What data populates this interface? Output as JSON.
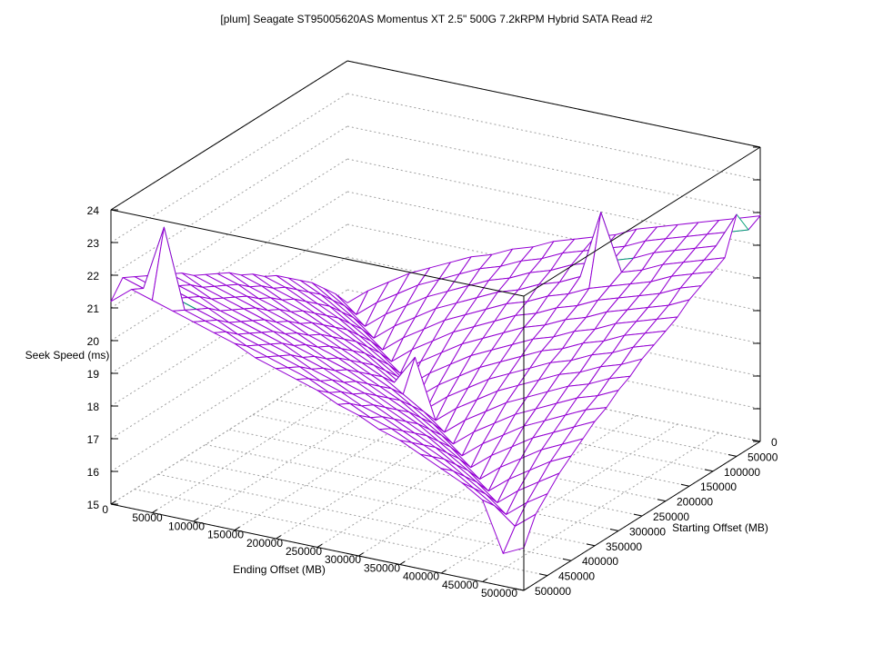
{
  "chart_data": {
    "type": "heatmap",
    "render_style": "3d wireframe surface",
    "title": "[plum] Seagate ST95005620AS Momentus XT 2.5\" 500G 7.2kRPM Hybrid SATA Read #2",
    "xlabel": "Ending Offset (MB)",
    "ylabel": "Starting Offset (MB)",
    "zlabel": "Seek Speed (ms)",
    "xlim": [
      0,
      500000
    ],
    "ylim": [
      0,
      500000
    ],
    "zlim": [
      15,
      24
    ],
    "xticks": [
      "0",
      "50000",
      "100000",
      "150000",
      "200000",
      "250000",
      "300000",
      "350000",
      "400000",
      "450000",
      "500000"
    ],
    "yticks": [
      "0",
      "50000",
      "100000",
      "150000",
      "200000",
      "250000",
      "300000",
      "350000",
      "400000",
      "450000",
      "500000"
    ],
    "zticks": [
      "15",
      "16",
      "17",
      "18",
      "19",
      "20",
      "21",
      "22",
      "23",
      "24"
    ],
    "grid": true,
    "colors": {
      "surface_top": "#9400d3",
      "surface_bottom": "#009e73",
      "grid": "#a0a0a0",
      "axis": "#000000"
    },
    "x_step": 25000,
    "y_step": 25000,
    "z_rows_by_starting_offset": [
      [
        16.6,
        17.1,
        17.5,
        17.9,
        18.2,
        18.5,
        18.8,
        19.0,
        19.3,
        19.5,
        19.8,
        20.0,
        20.2,
        20.4,
        20.7,
        20.9,
        21.1,
        21.3,
        21.5,
        21.7,
        21.9
      ],
      [
        17.1,
        16.6,
        17.1,
        17.5,
        17.9,
        18.2,
        18.5,
        18.8,
        19.0,
        19.3,
        19.5,
        19.8,
        20.0,
        20.2,
        20.4,
        20.7,
        20.9,
        21.1,
        21.3,
        21.5,
        21.7
      ],
      [
        17.5,
        17.1,
        16.6,
        17.1,
        17.5,
        17.9,
        18.2,
        18.5,
        18.8,
        19.0,
        19.3,
        19.5,
        19.8,
        20.0,
        20.2,
        20.4,
        20.7,
        20.9,
        21.1,
        21.3,
        22.4
      ],
      [
        17.9,
        17.5,
        17.1,
        16.6,
        17.1,
        17.5,
        17.9,
        18.2,
        18.5,
        18.8,
        19.0,
        19.3,
        19.5,
        19.8,
        21.9,
        20.2,
        20.4,
        20.7,
        20.9,
        21.1,
        21.3
      ],
      [
        18.2,
        17.9,
        17.5,
        17.1,
        16.6,
        17.1,
        17.5,
        17.9,
        18.2,
        18.5,
        18.8,
        19.0,
        19.3,
        19.5,
        19.8,
        20.0,
        20.2,
        20.4,
        20.7,
        20.9,
        21.1
      ],
      [
        18.5,
        18.2,
        17.9,
        17.5,
        17.1,
        16.6,
        17.1,
        17.5,
        17.9,
        18.2,
        18.5,
        18.8,
        19.0,
        19.3,
        19.5,
        19.8,
        20.0,
        20.2,
        20.4,
        20.7,
        20.9
      ],
      [
        18.8,
        18.5,
        18.2,
        17.9,
        17.5,
        17.1,
        16.6,
        17.1,
        17.5,
        17.9,
        18.2,
        18.5,
        18.8,
        19.0,
        19.3,
        19.5,
        19.8,
        20.0,
        20.2,
        20.4,
        20.7
      ],
      [
        19.0,
        18.8,
        18.5,
        18.2,
        17.9,
        17.5,
        17.1,
        16.6,
        17.1,
        17.5,
        17.9,
        18.2,
        18.5,
        18.8,
        19.0,
        19.3,
        19.5,
        19.8,
        20.0,
        20.2,
        20.4
      ],
      [
        19.3,
        19.0,
        18.8,
        18.5,
        18.2,
        17.9,
        17.5,
        17.1,
        16.6,
        17.1,
        17.5,
        17.9,
        18.2,
        18.5,
        18.8,
        19.0,
        19.3,
        19.5,
        19.8,
        20.0,
        20.2
      ],
      [
        19.5,
        19.3,
        19.0,
        18.8,
        18.5,
        18.2,
        17.9,
        17.5,
        17.1,
        16.6,
        17.1,
        17.5,
        17.9,
        18.2,
        18.5,
        18.8,
        19.0,
        19.3,
        19.5,
        19.8,
        20.0
      ],
      [
        19.8,
        19.5,
        19.3,
        19.0,
        18.8,
        18.5,
        18.2,
        17.9,
        17.5,
        18.4,
        16.6,
        17.1,
        17.5,
        17.9,
        18.2,
        18.5,
        18.8,
        19.0,
        19.3,
        19.5,
        19.8
      ],
      [
        20.0,
        19.8,
        19.5,
        19.3,
        19.0,
        18.8,
        18.5,
        18.2,
        17.9,
        17.5,
        17.1,
        16.6,
        17.1,
        17.5,
        17.9,
        18.2,
        18.5,
        18.8,
        19.0,
        19.3,
        19.5
      ],
      [
        20.2,
        20.0,
        19.8,
        19.5,
        19.3,
        19.0,
        18.8,
        18.5,
        18.2,
        17.9,
        17.5,
        17.1,
        16.6,
        17.1,
        17.5,
        17.9,
        18.2,
        18.5,
        18.8,
        19.0,
        19.3
      ],
      [
        20.4,
        20.2,
        20.0,
        19.8,
        19.5,
        19.3,
        19.0,
        18.8,
        18.5,
        18.2,
        17.9,
        17.5,
        17.1,
        16.6,
        17.1,
        17.5,
        17.9,
        18.2,
        18.5,
        18.8,
        19.0
      ],
      [
        20.7,
        20.4,
        20.2,
        20.0,
        19.8,
        19.5,
        19.3,
        19.0,
        18.8,
        18.5,
        18.2,
        17.9,
        17.5,
        17.1,
        16.6,
        17.1,
        17.5,
        17.9,
        18.2,
        18.5,
        18.8
      ],
      [
        20.9,
        20.7,
        20.4,
        20.2,
        20.0,
        19.8,
        19.5,
        19.3,
        19.0,
        18.8,
        18.5,
        18.2,
        17.9,
        17.5,
        17.1,
        16.6,
        17.1,
        17.5,
        17.9,
        18.2,
        18.5
      ],
      [
        21.1,
        20.9,
        20.7,
        20.4,
        20.2,
        20.0,
        19.8,
        19.5,
        19.3,
        19.0,
        18.8,
        18.5,
        18.2,
        17.9,
        17.5,
        17.1,
        16.6,
        17.1,
        17.5,
        17.9,
        18.2
      ],
      [
        21.3,
        21.1,
        20.9,
        20.7,
        20.4,
        20.2,
        20.0,
        19.8,
        19.5,
        19.3,
        19.0,
        18.8,
        18.5,
        18.2,
        17.9,
        17.5,
        17.1,
        16.6,
        17.1,
        17.5,
        17.9
      ],
      [
        21.5,
        21.3,
        21.1,
        20.9,
        20.7,
        20.4,
        20.2,
        20.0,
        19.8,
        19.5,
        19.3,
        19.0,
        18.8,
        18.5,
        18.2,
        17.9,
        17.5,
        17.1,
        16.6,
        17.1,
        17.5
      ],
      [
        21.7,
        21.5,
        23.5,
        21.1,
        20.9,
        20.7,
        20.4,
        20.2,
        20.0,
        19.8,
        19.5,
        19.3,
        19.0,
        18.8,
        18.5,
        18.2,
        17.9,
        17.5,
        17.1,
        16.6,
        17.1
      ],
      [
        21.2,
        21.7,
        21.5,
        21.3,
        21.1,
        20.9,
        20.7,
        20.4,
        20.2,
        20.0,
        19.8,
        19.5,
        19.3,
        19.0,
        18.8,
        18.5,
        18.2,
        17.9,
        17.5,
        16.0,
        16.3
      ]
    ]
  }
}
